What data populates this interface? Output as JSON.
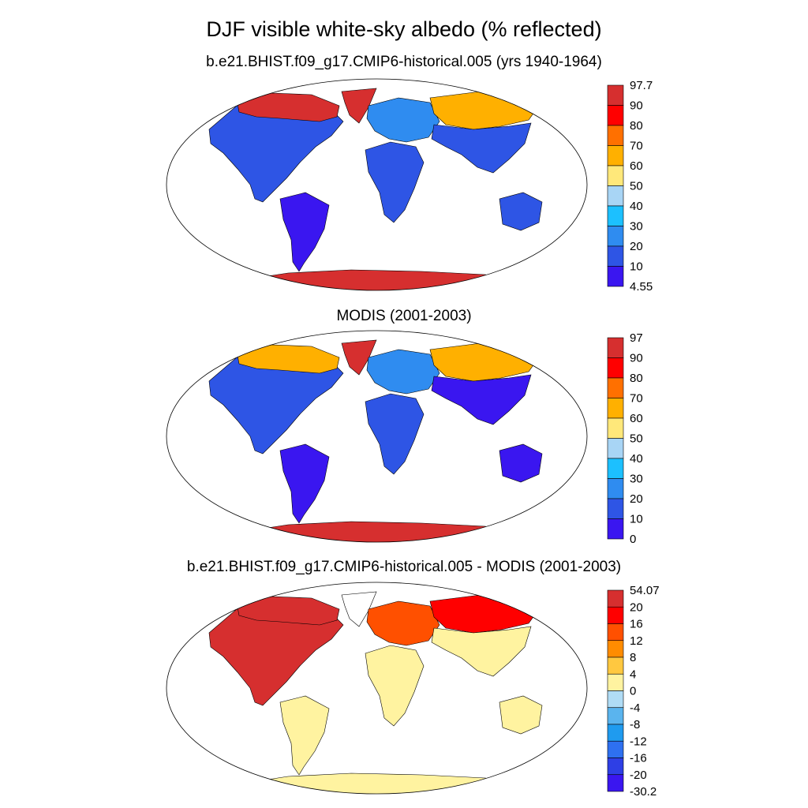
{
  "title": "DJF visible white-sky albedo (% reflected)",
  "panels": [
    {
      "subtitle": "b.e21.BHIST.f09_g17.CMIP6-historical.005 (yrs 1940-1964)",
      "colorbar": {
        "labels": [
          "97.7",
          "90",
          "80",
          "70",
          "60",
          "50",
          "40",
          "30",
          "20",
          "10",
          "4.55"
        ],
        "colors": [
          "#d62f2f",
          "#ff0000",
          "#ff7000",
          "#ffb000",
          "#ffe87a",
          "#a8d5f5",
          "#1cc0ff",
          "#2f8cf0",
          "#2e55e5",
          "#3a16f0"
        ]
      },
      "regions": {
        "north_america": "#2e55e5",
        "arctic_canada": "#d62f2f",
        "greenland": "#d62f2f",
        "south_america": "#3a16f0",
        "europe": "#2f8cf0",
        "siberia": "#ffb000",
        "asia": "#2e55e5",
        "africa": "#2e55e5",
        "australia": "#2e55e5",
        "antarctica": "#d62f2f"
      }
    },
    {
      "subtitle": "MODIS (2001-2003)",
      "colorbar": {
        "labels": [
          "97",
          "90",
          "80",
          "70",
          "60",
          "50",
          "40",
          "30",
          "20",
          "10",
          "0"
        ],
        "colors": [
          "#d62f2f",
          "#ff0000",
          "#ff7000",
          "#ffb000",
          "#ffe87a",
          "#a8d5f5",
          "#1cc0ff",
          "#2f8cf0",
          "#2e55e5",
          "#3a16f0"
        ]
      },
      "regions": {
        "north_america": "#2e55e5",
        "arctic_canada": "#ffb000",
        "greenland": "#d62f2f",
        "south_america": "#3a16f0",
        "europe": "#2f8cf0",
        "siberia": "#ffb000",
        "asia": "#3a16f0",
        "africa": "#2e55e5",
        "australia": "#3a16f0",
        "antarctica": "#d62f2f"
      }
    },
    {
      "subtitle": "b.e21.BHIST.f09_g17.CMIP6-historical.005 - MODIS (2001-2003)",
      "colorbar": {
        "labels": [
          "54.07",
          "20",
          "16",
          "12",
          "8",
          "4",
          "0",
          "-4",
          "-8",
          "-12",
          "-16",
          "-20",
          "-30.2"
        ],
        "colors": [
          "#d62f2f",
          "#ff0000",
          "#ff5000",
          "#ff8c00",
          "#ffc840",
          "#fff3a0",
          "#b0dcf5",
          "#5ab4ee",
          "#1f9bef",
          "#2e70f0",
          "#2e3fe5",
          "#3a16f0"
        ]
      },
      "regions": {
        "north_america": "#d62f2f",
        "arctic_canada": "#d62f2f",
        "greenland": "#ffffff",
        "south_america": "#fff3a0",
        "europe": "#ff5000",
        "siberia": "#ff0000",
        "asia": "#fff3a0",
        "africa": "#fff3a0",
        "australia": "#fff3a0",
        "antarctica": "#fff3a0"
      }
    }
  ]
}
